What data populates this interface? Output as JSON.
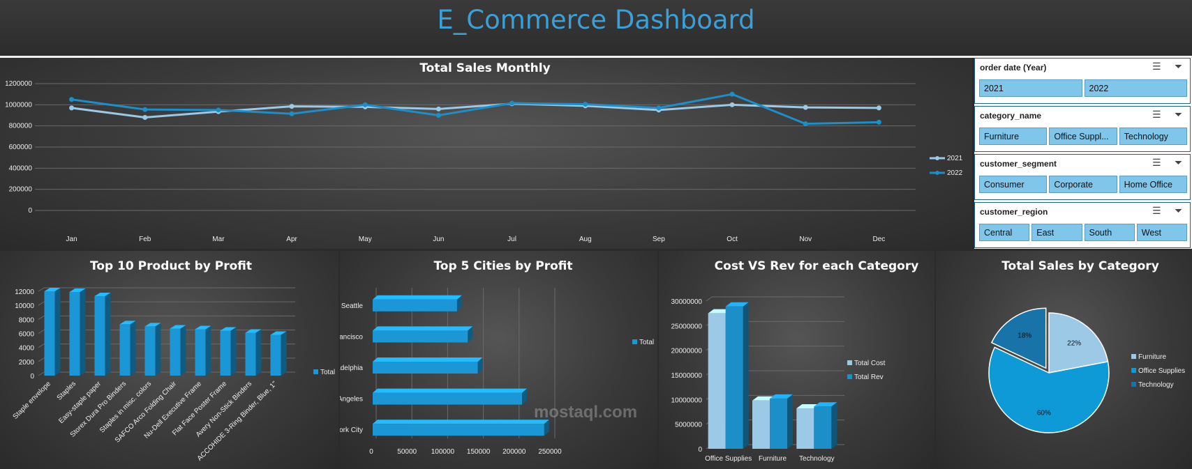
{
  "header": {
    "title": "E_Commerce Dashboard"
  },
  "slicers": [
    {
      "title": "order date (Year)",
      "items": [
        "2021",
        "2022"
      ]
    },
    {
      "title": "category_name",
      "items": [
        "Furniture",
        "Office Suppl...",
        "Technology"
      ]
    },
    {
      "title": "customer_segment",
      "items": [
        "Consumer",
        "Corporate",
        "Home Office"
      ]
    },
    {
      "title": "customer_region",
      "items": [
        "Central",
        "East",
        "South",
        "West"
      ]
    }
  ],
  "watermark": "mostaql.com",
  "chart_data": [
    {
      "type": "line",
      "title": "Total Sales Monthly",
      "categories": [
        "Jan",
        "Feb",
        "Mar",
        "Apr",
        "May",
        "Jun",
        "Jul",
        "Aug",
        "Sep",
        "Oct",
        "Nov",
        "Dec"
      ],
      "series": [
        {
          "name": "2021",
          "color": "#9cc9e6",
          "values": [
            970000,
            880000,
            935000,
            985000,
            980000,
            960000,
            1010000,
            990000,
            950000,
            1000000,
            975000,
            970000
          ]
        },
        {
          "name": "2022",
          "color": "#1c8fc9",
          "values": [
            1050000,
            955000,
            950000,
            915000,
            1000000,
            900000,
            1015000,
            1005000,
            970000,
            1100000,
            820000,
            835000
          ]
        }
      ],
      "ylim": [
        0,
        1200000
      ],
      "yticks": [
        0,
        200000,
        400000,
        600000,
        800000,
        1000000,
        1200000
      ],
      "ytick_labels": [
        "0",
        "200000",
        "400000",
        "600000",
        "800000",
        "1000000",
        "1200000"
      ],
      "legend": "right"
    },
    {
      "type": "bar",
      "title": "Top 10 Product by Profit",
      "categories": [
        "Staple envelope",
        "Staples",
        "Easy-staple paper",
        "Storex Dura Pro Binders",
        "Staples in misc. colors",
        "SAFCO Arco Folding Chair",
        "Nu-Dell Executive Frame",
        "Flat Face Poster Frame",
        "Avery Non-Stick Binders",
        "ACCOHIDE 3-Ring Binder, Blue, 1\""
      ],
      "series": [
        {
          "name": "Total",
          "values": [
            12000,
            11900,
            11300,
            7300,
            7000,
            6700,
            6600,
            6400,
            6100,
            5800
          ]
        }
      ],
      "ylim": [
        0,
        12000
      ],
      "yticks": [
        0,
        2000,
        4000,
        6000,
        8000,
        10000,
        12000
      ],
      "ytick_labels": [
        "0",
        "2000",
        "4000",
        "6000",
        "8000",
        "10000",
        "12000"
      ],
      "legend": "right"
    },
    {
      "type": "bar",
      "orientation": "horizontal",
      "title": "Top 5 Cities by Profit",
      "categories": [
        "Seattle",
        "San Francisco",
        "Philadelphia",
        "Los Angeles",
        "New York City"
      ],
      "series": [
        {
          "name": "Total",
          "values": [
            118000,
            133000,
            147000,
            209000,
            240000
          ]
        }
      ],
      "xlim": [
        0,
        250000
      ],
      "xticks": [
        0,
        50000,
        100000,
        150000,
        200000,
        250000
      ],
      "xtick_labels": [
        "0",
        "50000",
        "100000",
        "150000",
        "200000",
        "250000"
      ],
      "legend": "right"
    },
    {
      "type": "bar",
      "title": "Cost VS Rev for each Category",
      "categories": [
        "Office Supplies",
        "Furniture",
        "Technology"
      ],
      "series": [
        {
          "name": "Total Cost",
          "color": "#9cc9e6",
          "values": [
            27500000,
            9800000,
            8200000
          ]
        },
        {
          "name": "Total Rev",
          "color": "#1c8fc9",
          "values": [
            28900000,
            10200000,
            8600000
          ]
        }
      ],
      "ylim": [
        0,
        30000000
      ],
      "yticks": [
        0,
        5000000,
        10000000,
        15000000,
        20000000,
        25000000,
        30000000
      ],
      "ytick_labels": [
        "0",
        "5000000",
        "10000000",
        "15000000",
        "20000000",
        "25000000",
        "30000000"
      ],
      "legend": "right"
    },
    {
      "type": "pie",
      "title": "Total Sales by Category",
      "categories": [
        "Furniture",
        "Office Supplies",
        "Technology"
      ],
      "values": [
        22,
        60,
        18
      ],
      "labels": [
        "22%",
        "60%",
        "18%"
      ],
      "colors": [
        "#9cc9e6",
        "#0e9ad6",
        "#1773a8"
      ],
      "legend": "right"
    }
  ]
}
